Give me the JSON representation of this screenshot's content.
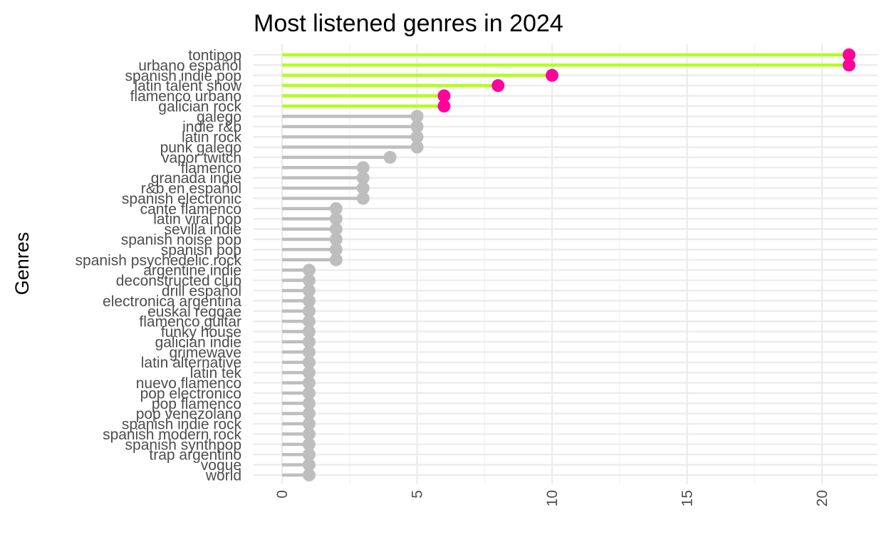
{
  "chart_data": {
    "type": "lollipop",
    "orientation": "horizontal",
    "title": "Most listened genres in 2024",
    "xlabel": "",
    "ylabel": "Genres",
    "xlim": [
      0,
      21.9
    ],
    "x_ticks": [
      0,
      5,
      10,
      15,
      20
    ],
    "x_tick_labels": [
      "0",
      "5",
      "10",
      "15",
      "20"
    ],
    "x_tick_rotation": -90,
    "grid": true,
    "legend": "none",
    "colors": {
      "highlight_line": "#b3ff1a",
      "highlight_point": "#ff0099",
      "normal_line": "#bebebe",
      "normal_point": "#bebebe"
    },
    "highlight_threshold": 5,
    "genres": [
      {
        "name": "tontipop",
        "value": 21
      },
      {
        "name": "urbano español",
        "value": 21
      },
      {
        "name": "spanish indie pop",
        "value": 10
      },
      {
        "name": "latin talent show",
        "value": 8
      },
      {
        "name": "flamenco urbano",
        "value": 6
      },
      {
        "name": "galician rock",
        "value": 6
      },
      {
        "name": "galego",
        "value": 5
      },
      {
        "name": "indie r&b",
        "value": 5
      },
      {
        "name": "latin rock",
        "value": 5
      },
      {
        "name": "punk galego",
        "value": 5
      },
      {
        "name": "vapor twitch",
        "value": 4
      },
      {
        "name": "flamenco",
        "value": 3
      },
      {
        "name": "granada indie",
        "value": 3
      },
      {
        "name": "r&b en español",
        "value": 3
      },
      {
        "name": "spanish electronic",
        "value": 3
      },
      {
        "name": "cante flamenco",
        "value": 2
      },
      {
        "name": "latin viral pop",
        "value": 2
      },
      {
        "name": "sevilla indie",
        "value": 2
      },
      {
        "name": "spanish noise pop",
        "value": 2
      },
      {
        "name": "spanish pop",
        "value": 2
      },
      {
        "name": "spanish psychedelic rock",
        "value": 2
      },
      {
        "name": "argentine indie",
        "value": 1
      },
      {
        "name": "deconstructed club",
        "value": 1
      },
      {
        "name": "drill español",
        "value": 1
      },
      {
        "name": "electronica argentina",
        "value": 1
      },
      {
        "name": "euskal reggae",
        "value": 1
      },
      {
        "name": "flamenco guitar",
        "value": 1
      },
      {
        "name": "funky house",
        "value": 1
      },
      {
        "name": "galician indie",
        "value": 1
      },
      {
        "name": "grimewave",
        "value": 1
      },
      {
        "name": "latin alternative",
        "value": 1
      },
      {
        "name": "latin tek",
        "value": 1
      },
      {
        "name": "nuevo flamenco",
        "value": 1
      },
      {
        "name": "pop electronico",
        "value": 1
      },
      {
        "name": "pop flamenco",
        "value": 1
      },
      {
        "name": "pop venezolano",
        "value": 1
      },
      {
        "name": "spanish indie rock",
        "value": 1
      },
      {
        "name": "spanish modern rock",
        "value": 1
      },
      {
        "name": "spanish synthpop",
        "value": 1
      },
      {
        "name": "trap argentino",
        "value": 1
      },
      {
        "name": "vogue",
        "value": 1
      },
      {
        "name": "world",
        "value": 1
      }
    ]
  }
}
